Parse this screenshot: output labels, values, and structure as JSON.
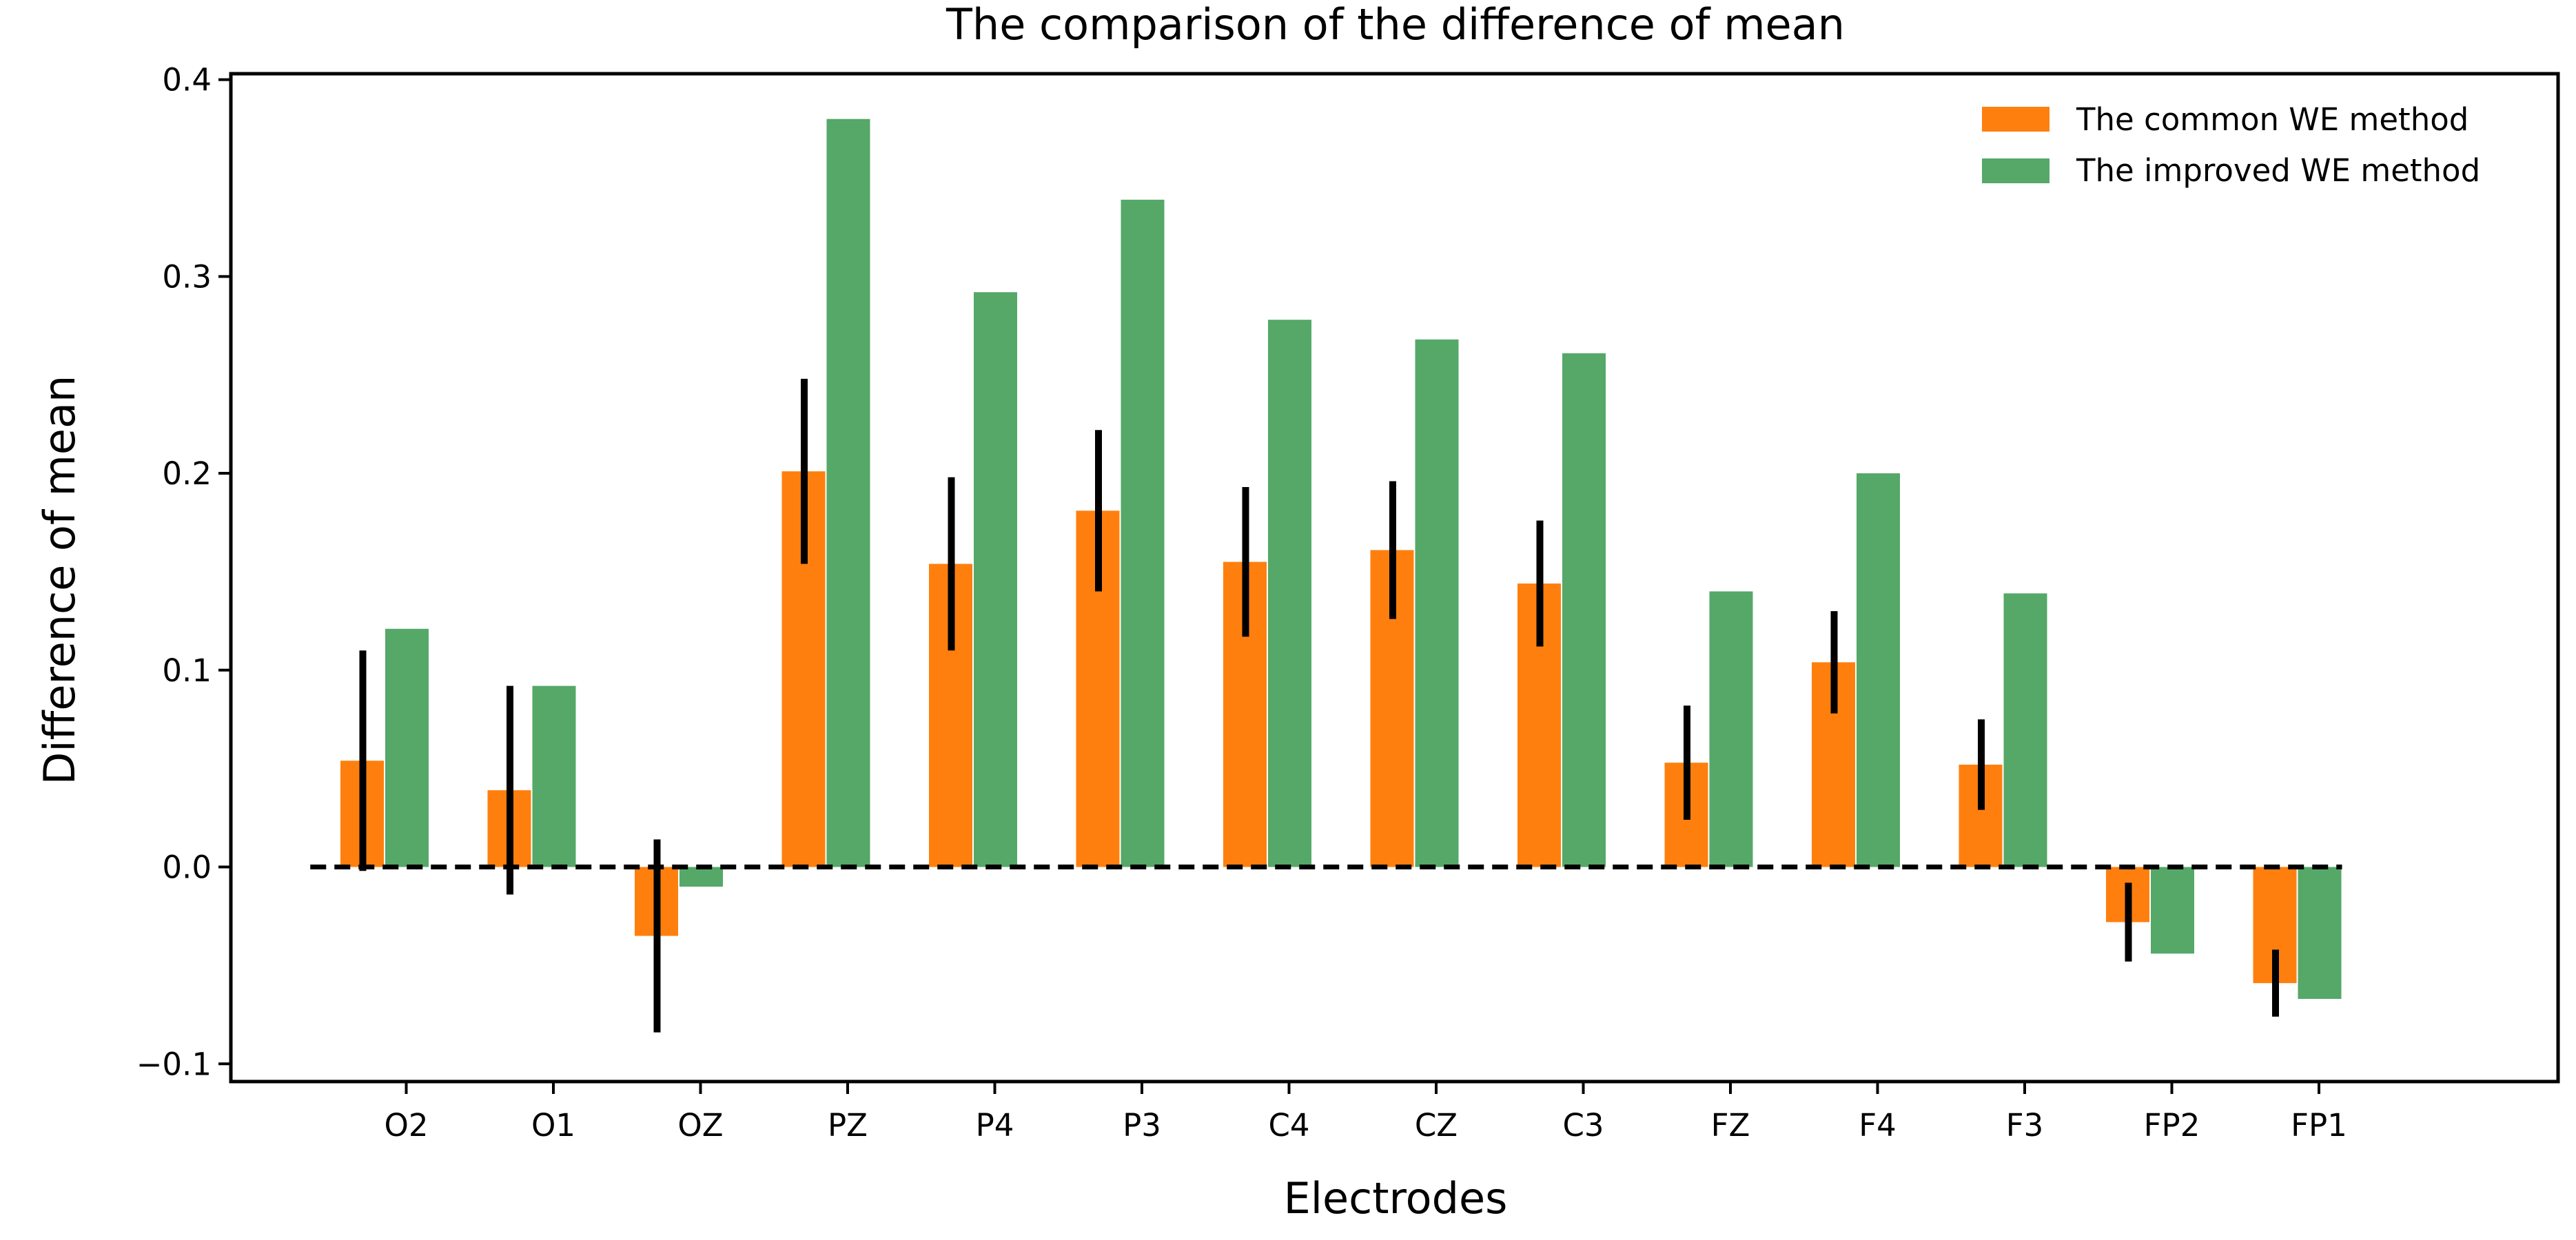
{
  "chart_data": {
    "type": "bar",
    "title": "The comparison of the difference of mean",
    "xlabel": "Electrodes",
    "ylabel": "Difference of mean",
    "categories": [
      "O2",
      "O1",
      "OZ",
      "PZ",
      "P4",
      "P3",
      "C4",
      "CZ",
      "C3",
      "FZ",
      "F4",
      "F3",
      "FP2",
      "FP1"
    ],
    "series": [
      {
        "name": "The common WE method",
        "color": "#ff7f0e",
        "values": [
          0.054,
          0.039,
          -0.035,
          0.201,
          0.154,
          0.181,
          0.155,
          0.161,
          0.144,
          0.053,
          0.104,
          0.052,
          -0.028,
          -0.059
        ],
        "error": [
          0.056,
          0.053,
          0.049,
          0.047,
          0.044,
          0.041,
          0.038,
          0.035,
          0.032,
          0.029,
          0.026,
          0.023,
          0.02,
          0.017
        ]
      },
      {
        "name": "The improved WE method",
        "color": "#55a868",
        "values": [
          0.121,
          0.092,
          -0.01,
          0.38,
          0.292,
          0.339,
          0.278,
          0.268,
          0.261,
          0.14,
          0.2,
          0.139,
          -0.044,
          -0.067
        ]
      }
    ],
    "ylim": [
      -0.109,
      0.403
    ],
    "yticks": [
      -0.1,
      0.0,
      0.1,
      0.2,
      0.3,
      0.4
    ],
    "ytick_labels": [
      "−0.1",
      "0.0",
      "0.1",
      "0.2",
      "0.3",
      "0.4"
    ],
    "grid": false,
    "legend_position": "top-right",
    "zero_line": "dashed"
  }
}
